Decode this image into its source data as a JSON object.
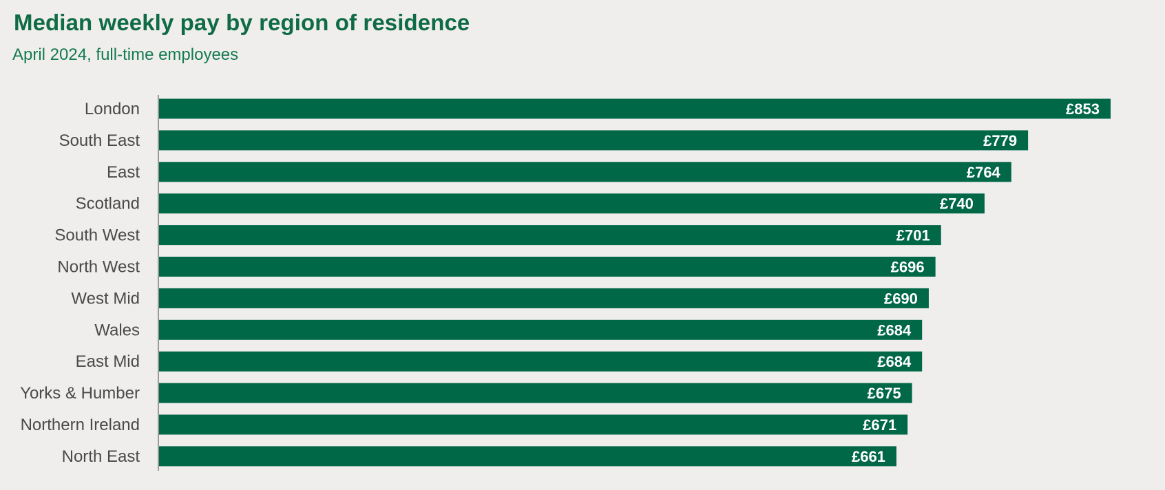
{
  "chart_data": {
    "type": "bar",
    "orientation": "horizontal",
    "title": "Median weekly pay by region of residence",
    "subtitle": "April 2024, full-time employees",
    "categories": [
      "London",
      "South East",
      "East",
      "Scotland",
      "South West",
      "North West",
      "West Mid",
      "Wales",
      "East Mid",
      "Yorks & Humber",
      "Northern Ireland",
      "North East"
    ],
    "values": [
      853,
      779,
      764,
      740,
      701,
      696,
      690,
      684,
      684,
      675,
      671,
      661
    ],
    "value_labels": [
      "£853",
      "£779",
      "£764",
      "£740",
      "£701",
      "£696",
      "£690",
      "£684",
      "£684",
      "£675",
      "£671",
      "£661"
    ],
    "xlim": [
      0,
      853
    ],
    "grid": false,
    "colors": {
      "bar": "#006747",
      "title": "#0f6b45",
      "background": "#efeeec"
    }
  }
}
